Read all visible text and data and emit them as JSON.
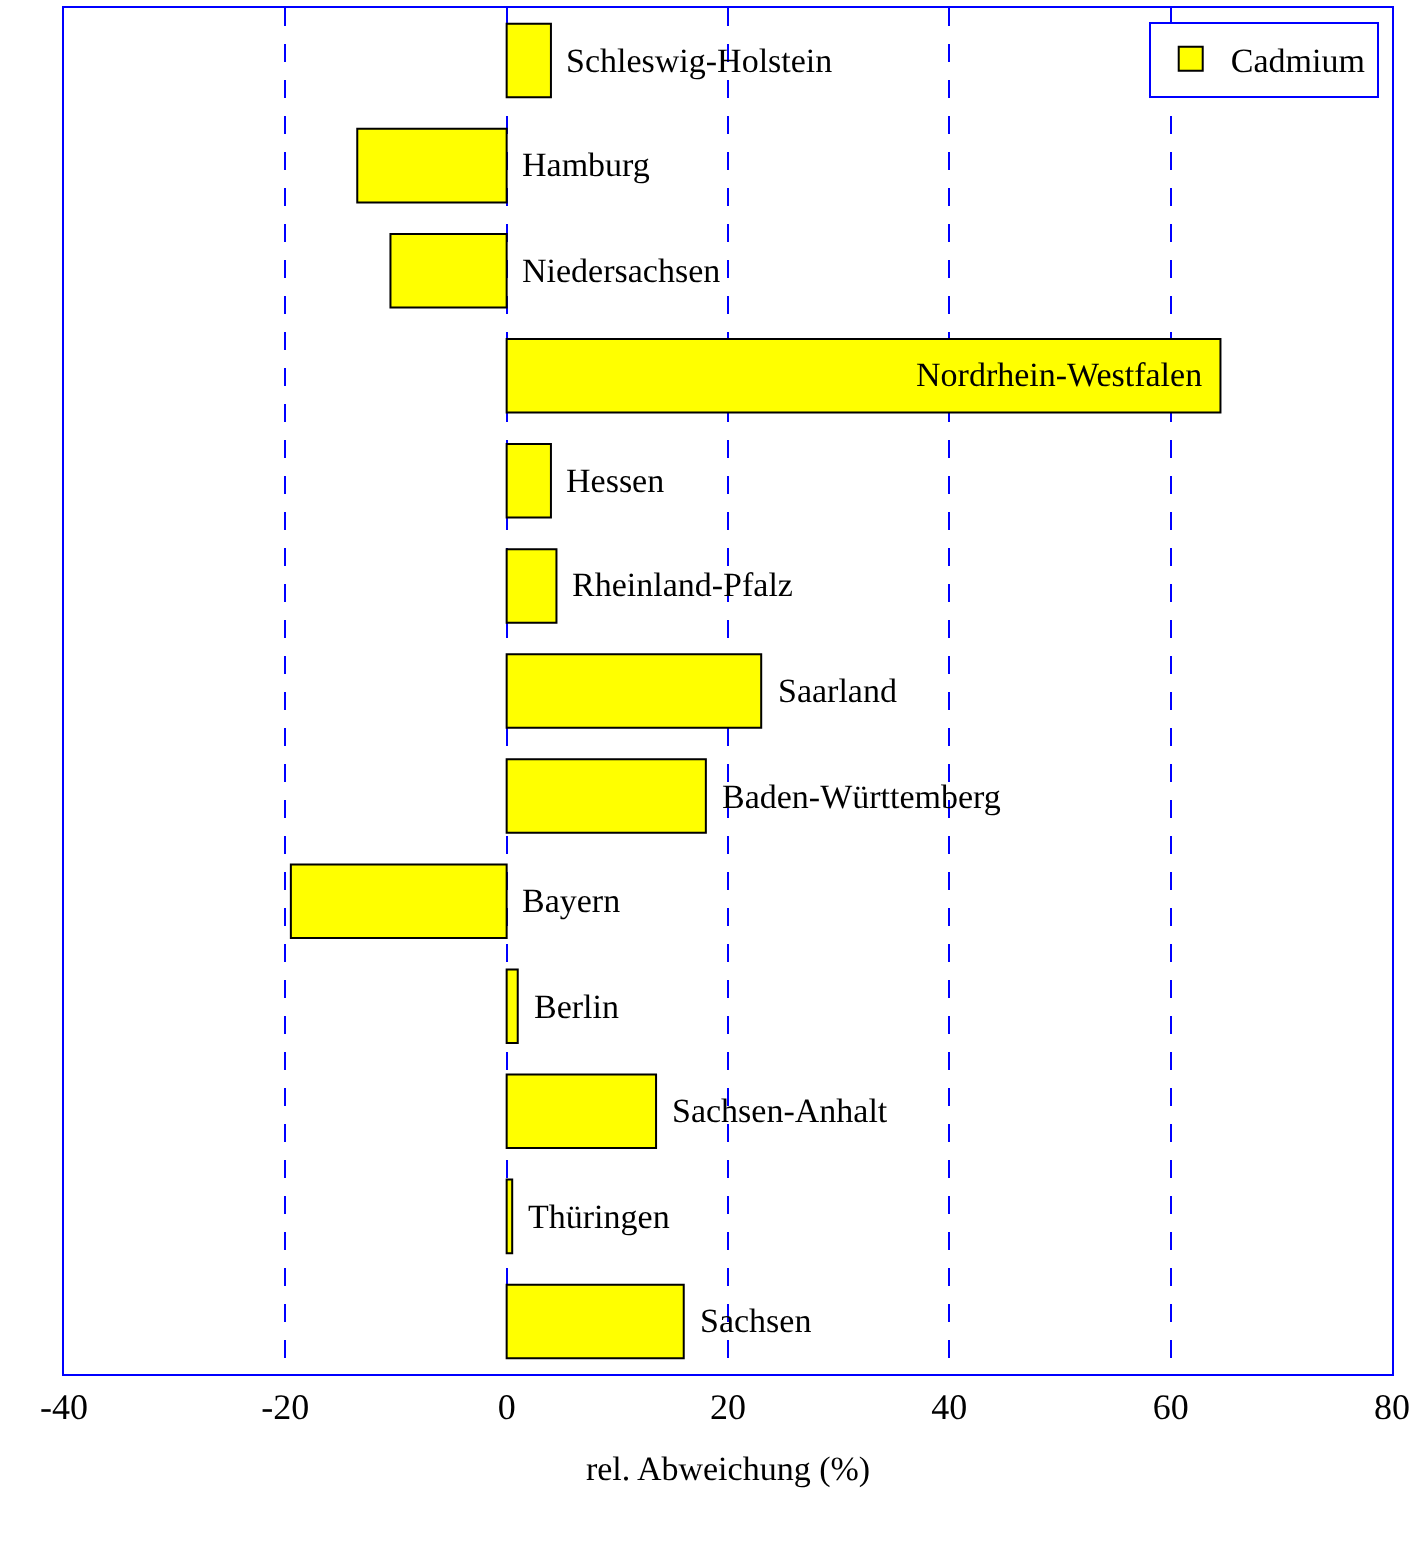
{
  "chart_data": {
    "type": "bar",
    "orientation": "horizontal",
    "xlabel": "rel. Abweichung (%)",
    "categories": [
      "Schleswig-Holstein",
      "Hamburg",
      "Niedersachsen",
      "Nordrhein-Westfalen",
      "Hessen",
      "Rheinland-Pfalz",
      "Saarland",
      "Baden-Württemberg",
      "Bayern",
      "Berlin",
      "Sachsen-Anhalt",
      "Thüringen",
      "Sachsen"
    ],
    "series": [
      {
        "name": "Cadmium",
        "color": "#ffff00",
        "values": [
          4,
          -13.5,
          -10.5,
          64.5,
          4,
          4.5,
          23,
          18,
          -19.5,
          1,
          13.5,
          0.5,
          16
        ]
      }
    ],
    "xlim": [
      -40,
      80
    ],
    "xticks": [
      -40,
      -20,
      0,
      20,
      40,
      60,
      80
    ],
    "grid": "x",
    "legend": "top right"
  }
}
